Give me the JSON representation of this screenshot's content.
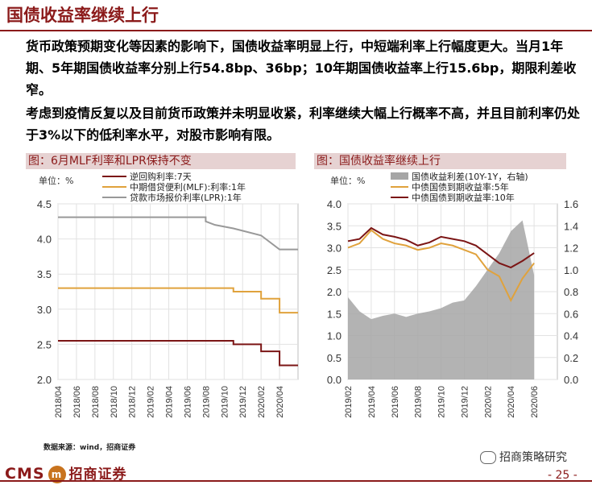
{
  "header": {
    "title": "国债收益率继续上行"
  },
  "body": {
    "paragraph1": "货币政策预期变化等因素的影响下，国债收益率明显上行，中短端利率上行幅度更大。当月1年期、5年期国债收益率分别上行54.8bp、36bp；10年期国债收益率上行15.6bp，期限利差收窄。",
    "paragraph2": "考虑到疫情反复以及目前货币政策并未明显收紧，利率继续大幅上行概率不高，并且目前利率仍处于3%以下的低利率水平，对股市影响有限。"
  },
  "chart_data": [
    {
      "type": "line",
      "title": "图：6月MLF利率和LPR保持不变",
      "unit_label": "单位：%",
      "x_ticks": [
        "2018/04",
        "2018/06",
        "2018/08",
        "2018/10",
        "2018/12",
        "2019/02",
        "2019/04",
        "2019/06",
        "2019/08",
        "2019/10",
        "2019/12",
        "2020/02",
        "2020/04"
      ],
      "ylim": [
        2.0,
        4.5
      ],
      "y_ticks": [
        "4.5",
        "4.0",
        "3.5",
        "3.0",
        "2.5",
        "2.0"
      ],
      "grid": true,
      "legend": "top-left",
      "series": [
        {
          "name": "逆回购利率:7天",
          "color": "#7b1515",
          "points": [
            [
              "2018/04",
              2.55
            ],
            [
              "2019/11",
              2.55
            ],
            [
              "2019/11",
              2.5
            ],
            [
              "2020/02",
              2.5
            ],
            [
              "2020/02",
              2.4
            ],
            [
              "2020/04",
              2.4
            ],
            [
              "2020/04",
              2.2
            ],
            [
              "2020/06",
              2.2
            ]
          ]
        },
        {
          "name": "中期借贷便利(MLF):利率:1年",
          "color": "#e0a23c",
          "points": [
            [
              "2018/04",
              3.3
            ],
            [
              "2019/11",
              3.3
            ],
            [
              "2019/11",
              3.25
            ],
            [
              "2020/02",
              3.25
            ],
            [
              "2020/02",
              3.15
            ],
            [
              "2020/04",
              3.15
            ],
            [
              "2020/04",
              2.95
            ],
            [
              "2020/06",
              2.95
            ]
          ]
        },
        {
          "name": "贷款市场报价利率(LPR):1年",
          "color": "#999999",
          "points": [
            [
              "2018/04",
              4.31
            ],
            [
              "2019/08",
              4.31
            ],
            [
              "2019/08",
              4.25
            ],
            [
              "2019/09",
              4.2
            ],
            [
              "2019/11",
              4.15
            ],
            [
              "2020/02",
              4.05
            ],
            [
              "2020/04",
              3.85
            ],
            [
              "2020/06",
              3.85
            ]
          ]
        }
      ]
    },
    {
      "type": "line",
      "title": "图：国债收益率继续上行",
      "unit_label": "单位：%",
      "x_ticks": [
        "2019/02",
        "2019/04",
        "2019/06",
        "2019/08",
        "2019/10",
        "2019/12",
        "2020/02",
        "2020/04",
        "2020/06"
      ],
      "ylim": [
        0.0,
        4.0
      ],
      "y_ticks": [
        "4.0",
        "3.5",
        "3.0",
        "2.5",
        "2.0",
        "1.5",
        "1.0",
        "0.5",
        "0.0"
      ],
      "y2lim": [
        0.0,
        1.6
      ],
      "y2_ticks": [
        "1.6",
        "1.4",
        "1.2",
        "1.0",
        "0.8",
        "0.6",
        "0.4",
        "0.2",
        "0.0"
      ],
      "grid": true,
      "legend": "top-center",
      "series": [
        {
          "name": "国债收益利差(10Y-1Y，右轴)",
          "color": "#a6a6a6",
          "axis": "right",
          "kind": "area",
          "points": [
            [
              "2019/02",
              0.75
            ],
            [
              "2019/03",
              0.62
            ],
            [
              "2019/04",
              0.55
            ],
            [
              "2019/05",
              0.58
            ],
            [
              "2019/06",
              0.6
            ],
            [
              "2019/07",
              0.57
            ],
            [
              "2019/08",
              0.6
            ],
            [
              "2019/09",
              0.62
            ],
            [
              "2019/10",
              0.65
            ],
            [
              "2019/11",
              0.7
            ],
            [
              "2019/12",
              0.72
            ],
            [
              "2020/01",
              0.85
            ],
            [
              "2020/02",
              1.0
            ],
            [
              "2020/03",
              1.15
            ],
            [
              "2020/04",
              1.35
            ],
            [
              "2020/05",
              1.45
            ],
            [
              "2020/06",
              0.95
            ]
          ]
        },
        {
          "name": "中债国债到期收益率:5年",
          "color": "#e0a23c",
          "axis": "left",
          "points": [
            [
              "2019/02",
              3.0
            ],
            [
              "2019/03",
              3.1
            ],
            [
              "2019/04",
              3.4
            ],
            [
              "2019/05",
              3.2
            ],
            [
              "2019/06",
              3.1
            ],
            [
              "2019/07",
              3.05
            ],
            [
              "2019/08",
              2.95
            ],
            [
              "2019/09",
              3.0
            ],
            [
              "2019/10",
              3.1
            ],
            [
              "2019/11",
              3.05
            ],
            [
              "2019/12",
              2.95
            ],
            [
              "2020/01",
              2.85
            ],
            [
              "2020/02",
              2.5
            ],
            [
              "2020/03",
              2.35
            ],
            [
              "2020/04",
              1.8
            ],
            [
              "2020/05",
              2.3
            ],
            [
              "2020/06",
              2.65
            ]
          ]
        },
        {
          "name": "中债国债到期收益率:10年",
          "color": "#7b1515",
          "axis": "left",
          "points": [
            [
              "2019/02",
              3.15
            ],
            [
              "2019/03",
              3.2
            ],
            [
              "2019/04",
              3.45
            ],
            [
              "2019/05",
              3.3
            ],
            [
              "2019/06",
              3.25
            ],
            [
              "2019/07",
              3.18
            ],
            [
              "2019/08",
              3.05
            ],
            [
              "2019/09",
              3.12
            ],
            [
              "2019/10",
              3.25
            ],
            [
              "2019/11",
              3.2
            ],
            [
              "2019/12",
              3.15
            ],
            [
              "2020/01",
              3.05
            ],
            [
              "2020/02",
              2.85
            ],
            [
              "2020/03",
              2.65
            ],
            [
              "2020/04",
              2.55
            ],
            [
              "2020/05",
              2.7
            ],
            [
              "2020/06",
              2.88
            ]
          ]
        }
      ]
    }
  ],
  "footer": {
    "source": "数据来源：wind，招商证券",
    "logo_text": "CMS",
    "logo_badge": "m",
    "logo_cn": "招商证券",
    "wechat": "招商策略研究",
    "page": "- 25 -"
  }
}
